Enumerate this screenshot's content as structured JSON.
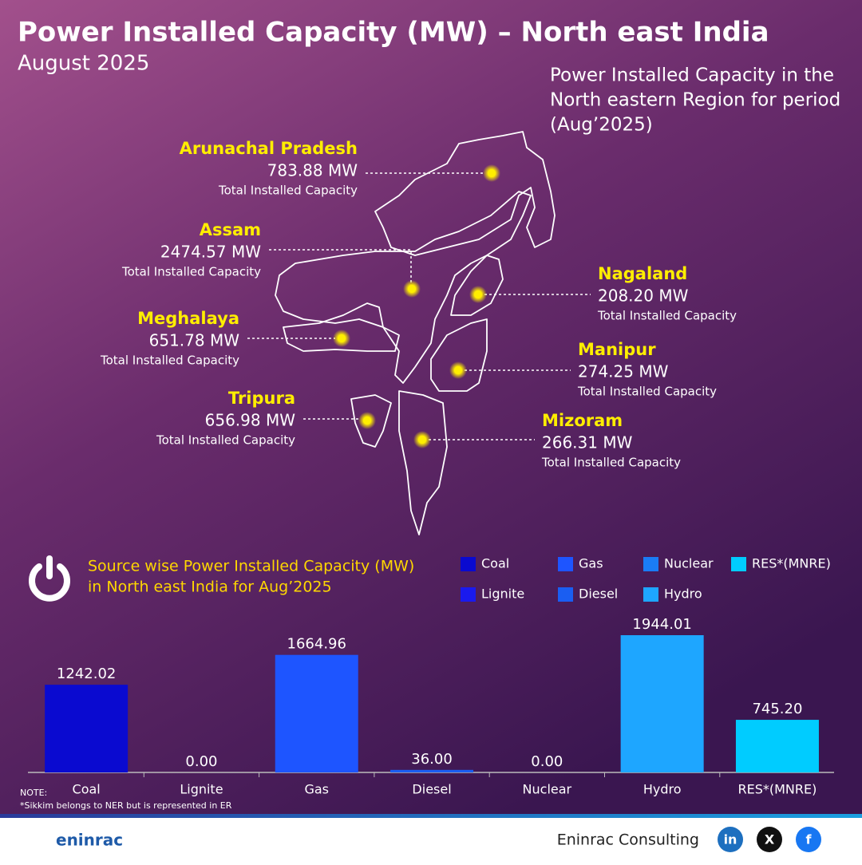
{
  "header": {
    "title": "Power Installed Capacity (MW) – North east India",
    "subtitle": "August 2025"
  },
  "map": {
    "caption": [
      "Power Installed Capacity in the",
      "North eastern Region for period",
      "(Aug’2025)"
    ],
    "states": [
      {
        "name": "Arunachal Pradesh",
        "value": "783.88 MW",
        "label": "Total Installed Capacity"
      },
      {
        "name": "Assam",
        "value": "2474.57 MW",
        "label": "Total Installed Capacity"
      },
      {
        "name": "Meghalaya",
        "value": "651.78 MW",
        "label": "Total Installed Capacity"
      },
      {
        "name": "Tripura",
        "value": "656.98 MW",
        "label": "Total Installed Capacity"
      },
      {
        "name": "Nagaland",
        "value": "208.20 MW",
        "label": "Total Installed Capacity"
      },
      {
        "name": "Manipur",
        "value": "274.25 MW",
        "label": "Total Installed Capacity"
      },
      {
        "name": "Mizoram",
        "value": "266.31 MW",
        "label": "Total Installed Capacity"
      }
    ]
  },
  "chart_data": {
    "type": "bar",
    "title": [
      "Source wise Power Installed Capacity (MW)",
      "in North east India for Aug’2025"
    ],
    "categories": [
      "Coal",
      "Lignite",
      "Gas",
      "Diesel",
      "Nuclear",
      "Hydro",
      "RES*(MNRE)"
    ],
    "values": [
      1242.02,
      0,
      1664.96,
      36,
      0,
      1944.01,
      745.2
    ],
    "value_labels": [
      "1242.02",
      "0.00",
      "1664.96",
      "36.00",
      "0.00",
      "1944.01",
      "745.20"
    ],
    "colors": [
      "#0a0ad0",
      "#1a1aee",
      "#1e55ff",
      "#1a5ef2",
      "#1a7cf6",
      "#1ea6ff",
      "#00ccff"
    ]
  },
  "note": [
    "NOTE:",
    "*Sikkim belongs to NER but is represented in ER"
  ],
  "footer": {
    "brand": "Eninrac Consulting",
    "logo": "eninrac",
    "social": [
      "in",
      "X",
      "f"
    ]
  }
}
